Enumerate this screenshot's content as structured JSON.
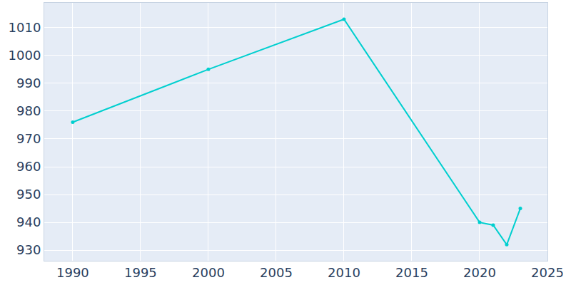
{
  "chart_data": {
    "type": "line",
    "x": [
      1990,
      2000,
      2010,
      2020,
      2021,
      2022,
      2023
    ],
    "values": [
      976,
      995,
      1013,
      940,
      939,
      932,
      945
    ],
    "color": "#00cfcf",
    "marker": "circle",
    "xlim": [
      1987.9,
      2025
    ],
    "xticks": [
      1990,
      1995,
      2000,
      2005,
      2010,
      2015,
      2020,
      2025
    ],
    "ylim": [
      926.2,
      1018.9
    ],
    "yticks": [
      930,
      940,
      950,
      960,
      970,
      980,
      990,
      1000,
      1010
    ],
    "grid": true
  }
}
